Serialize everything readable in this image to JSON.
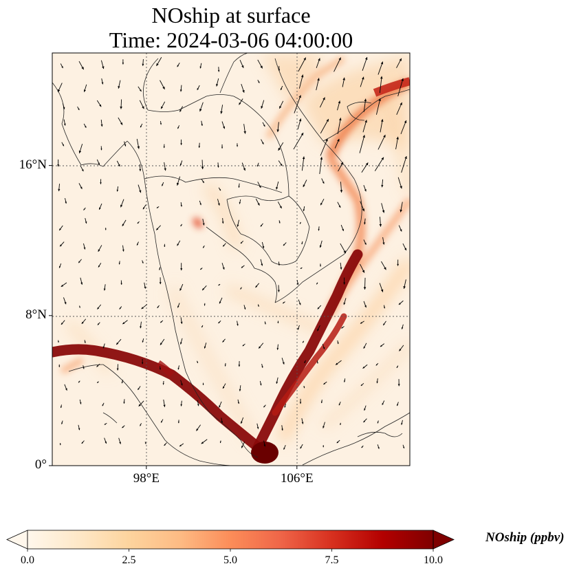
{
  "title": {
    "line1": "NOship at surface",
    "line2": "Time: 2024-03-06 04:00:00"
  },
  "map": {
    "type": "geographic field with wind vectors",
    "lon_range": [
      93,
      112
    ],
    "lat_range": [
      0,
      22
    ],
    "x_ticks": [
      {
        "value": 98,
        "label": "98°E"
      },
      {
        "value": 106,
        "label": "106°E"
      }
    ],
    "y_ticks": [
      {
        "value": 16,
        "label": "16°N"
      },
      {
        "value": 8,
        "label": "8°N"
      },
      {
        "value": 0,
        "label": "0°"
      }
    ],
    "gridlines": "dotted",
    "colormap": "OrRd"
  },
  "colorbar": {
    "label": "NOship (ppbv)",
    "min": 0.0,
    "max": 10.0,
    "extend": "both",
    "ticks": [
      {
        "value": 0.0,
        "label": "0.0"
      },
      {
        "value": 2.5,
        "label": "2.5"
      },
      {
        "value": 5.0,
        "label": "5.0"
      },
      {
        "value": 7.5,
        "label": "7.5"
      },
      {
        "value": 10.0,
        "label": "10.0"
      }
    ],
    "colors": [
      "#fff7ec",
      "#fee8c8",
      "#fdd49e",
      "#fdbb84",
      "#fc8d59",
      "#ef6548",
      "#d7301f",
      "#b30000",
      "#7f0000"
    ]
  }
}
